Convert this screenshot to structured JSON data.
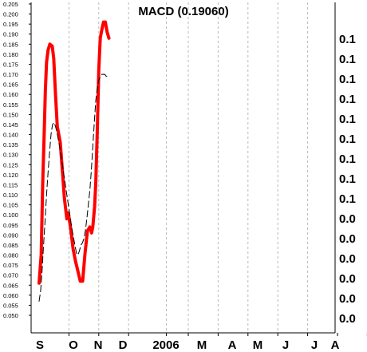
{
  "chart_data": {
    "type": "line",
    "title": "MACD (0.19060)",
    "x_tick_labels": [
      "S",
      "O",
      "N",
      "D",
      "2006",
      "M",
      "A",
      "M",
      "J",
      "J",
      "A"
    ],
    "left_axis": {
      "ylim": [
        0.046,
        0.208
      ],
      "ticks": [
        "0.205",
        "0.200",
        "0.195",
        "0.190",
        "0.185",
        "0.180",
        "0.175",
        "0.170",
        "0.165",
        "0.160",
        "0.155",
        "0.150",
        "0.145",
        "0.140",
        "0.135",
        "0.130",
        "0.125",
        "0.120",
        "0.115",
        "0.110",
        "0.105",
        "0.100",
        "0.095",
        "0.090",
        "0.085",
        "0.080",
        "0.075",
        "0.070",
        "0.065",
        "0.060",
        "0.055",
        "0.050"
      ]
    },
    "right_axis": {
      "ticks": [
        "0.1",
        "0.1",
        "0.1",
        "0.1",
        "0.1",
        "0.1",
        "0.1",
        "0.1",
        "0.1",
        "0.0",
        "0.0",
        "0.0",
        "0.0",
        "0.0",
        "0.0"
      ]
    },
    "grid": "vertical dashed",
    "series": [
      {
        "color": "#ff0000",
        "style": "solid",
        "x": [
          0,
          0.07,
          0.12,
          0.17,
          0.21,
          0.25,
          0.3,
          0.36,
          0.44,
          0.49,
          0.55,
          0.61,
          0.66,
          0.71,
          0.74,
          0.77,
          0.8,
          0.85,
          0.93,
          0.98,
          1.06,
          1.14,
          1.22,
          1.3,
          1.38,
          1.46,
          1.54,
          1.62,
          1.7,
          1.76,
          1.8,
          1.86,
          1.9,
          1.95,
          2.0,
          2.05,
          2.1,
          2.16,
          2.22,
          2.28,
          2.34
        ],
        "values": [
          0.066,
          0.08,
          0.115,
          0.14,
          0.162,
          0.176,
          0.182,
          0.185,
          0.184,
          0.178,
          0.16,
          0.144,
          0.14,
          0.136,
          0.13,
          0.124,
          0.118,
          0.108,
          0.098,
          0.101,
          0.093,
          0.083,
          0.077,
          0.072,
          0.067,
          0.067,
          0.081,
          0.092,
          0.094,
          0.091,
          0.094,
          0.104,
          0.116,
          0.142,
          0.172,
          0.188,
          0.192,
          0.196,
          0.196,
          0.191,
          0.188
        ]
      },
      {
        "color": "#000000",
        "style": "dashed",
        "x": [
          0,
          0.05,
          0.1,
          0.15,
          0.2,
          0.25,
          0.3,
          0.35,
          0.4,
          0.45,
          0.5,
          0.55,
          0.6,
          0.65,
          0.7,
          0.75,
          0.8,
          0.85,
          0.9,
          0.95,
          1.0,
          1.05,
          1.1,
          1.15,
          1.2,
          1.25,
          1.3,
          1.35,
          1.4,
          1.45,
          1.5,
          1.55,
          1.6,
          1.65,
          1.7,
          1.75,
          1.8,
          1.85,
          1.9,
          1.95,
          2.0,
          2.05,
          2.1,
          2.15,
          2.2,
          2.25,
          2.28
        ],
        "values": [
          0.057,
          0.062,
          0.072,
          0.085,
          0.097,
          0.11,
          0.121,
          0.131,
          0.14,
          0.145,
          0.146,
          0.144,
          0.141,
          0.137,
          0.133,
          0.128,
          0.123,
          0.118,
          0.113,
          0.108,
          0.103,
          0.098,
          0.093,
          0.089,
          0.085,
          0.081,
          0.08,
          0.082,
          0.085,
          0.086,
          0.088,
          0.092,
          0.098,
          0.105,
          0.112,
          0.122,
          0.134,
          0.146,
          0.157,
          0.163,
          0.167,
          0.169,
          0.17,
          0.17,
          0.17,
          0.169,
          0.169
        ]
      }
    ]
  }
}
